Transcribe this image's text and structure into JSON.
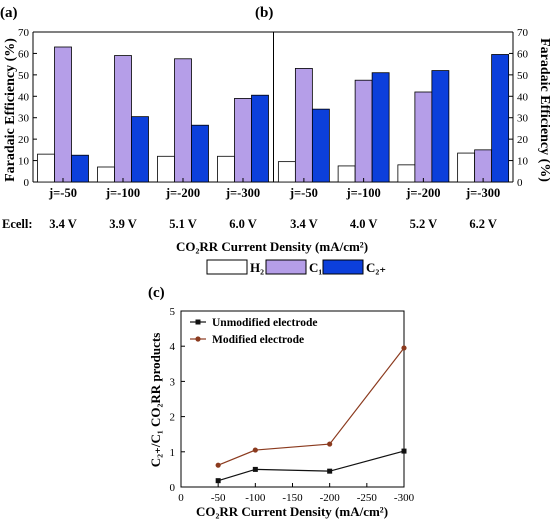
{
  "figure": {
    "panel_labels": [
      "(a)",
      "(b)",
      "(c)"
    ],
    "x_tick_prefix": "Ecell:",
    "legend_bars": [
      "H₂",
      "C₁",
      "C₂₊"
    ]
  },
  "chart_data": [
    {
      "type": "bar",
      "panel": "(a)",
      "categories": [
        "j=-50",
        "j=-100",
        "j=-200",
        "j=-300"
      ],
      "ecell": [
        "3.4 V",
        "3.9 V",
        "5.1 V",
        "6.0 V"
      ],
      "series": [
        {
          "name": "H₂",
          "values": [
            13,
            7,
            12,
            12
          ],
          "color": "#ffffff"
        },
        {
          "name": "C₁",
          "values": [
            63,
            59,
            57.5,
            39
          ],
          "color": "#b59ee8"
        },
        {
          "name": "C₂₊",
          "values": [
            12.5,
            30.5,
            26.5,
            40.5
          ],
          "color": "#0c3fdb"
        }
      ],
      "ylabel": "Faradaic Efficiency (%)",
      "ylim": [
        0,
        70
      ],
      "yticks": [
        0,
        10,
        20,
        30,
        40,
        50,
        60,
        70
      ],
      "grid": false
    },
    {
      "type": "bar",
      "panel": "(b)",
      "categories": [
        "j=-50",
        "j=-100",
        "j=-200",
        "j=-300"
      ],
      "ecell": [
        "3.4 V",
        "4.0 V",
        "5.2 V",
        "6.2 V"
      ],
      "series": [
        {
          "name": "H₂",
          "values": [
            9.5,
            7.5,
            8,
            13.5
          ],
          "color": "#ffffff"
        },
        {
          "name": "C₁",
          "values": [
            53,
            47.5,
            42,
            15
          ],
          "color": "#b59ee8"
        },
        {
          "name": "C₂₊",
          "values": [
            34,
            51,
            52,
            59.5
          ],
          "color": "#0c3fdb"
        }
      ],
      "ylabel": "Faradaic Efficiency (%)",
      "ylim": [
        0,
        70
      ],
      "yticks": [
        0,
        10,
        20,
        30,
        40,
        50,
        60,
        70
      ],
      "grid": false
    },
    {
      "type": "line",
      "panel": "(c)",
      "x": [
        -50,
        -100,
        -200,
        -300
      ],
      "xticks": [
        "0",
        "-50",
        "-100",
        "-150",
        "-200",
        "-250",
        "-300"
      ],
      "series": [
        {
          "name": "Unmodified electrode",
          "values": [
            0.18,
            0.5,
            0.45,
            1.02
          ],
          "color": "#111111",
          "marker": "square"
        },
        {
          "name": "Modified electrode",
          "values": [
            0.62,
            1.05,
            1.22,
            3.95
          ],
          "color": "#8b3a1e",
          "marker": "circle"
        }
      ],
      "xlabel": "CO₂RR Current Density (mA/cm²)",
      "ylabel": "C₂₊/C₁ CO₂RR products",
      "xlim": [
        0,
        -300
      ],
      "ylim": [
        0,
        5
      ],
      "yticks": [
        0,
        1,
        2,
        3,
        4,
        5
      ],
      "legend": "top-left",
      "grid": false
    }
  ],
  "shared_xlabel": "CO₂RR Current Density (mA/cm²)"
}
